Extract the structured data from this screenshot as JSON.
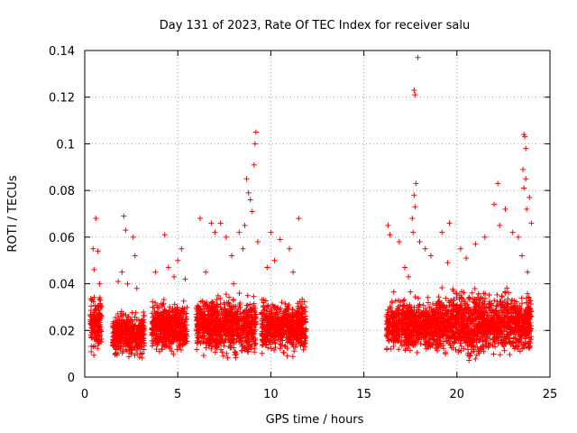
{
  "chart_data": {
    "type": "scatter",
    "title": "Day 131 of 2023, Rate Of TEC Index for receiver salu",
    "xlabel": "GPS time / hours",
    "ylabel": "ROTI / TECUs",
    "xlim": [
      0,
      25
    ],
    "ylim": [
      0,
      0.14
    ],
    "xticks": [
      0,
      5,
      10,
      15,
      20,
      25
    ],
    "xtick_labels": [
      "0",
      "5",
      "10",
      "15",
      "20",
      "25"
    ],
    "yticks": [
      0,
      0.02,
      0.04,
      0.06,
      0.08,
      0.1,
      0.12,
      0.14
    ],
    "ytick_labels": [
      "0",
      "0.02",
      "0.04",
      "0.06",
      "0.08",
      "0.1",
      "0.12",
      "0.14"
    ],
    "grid": true,
    "marker": "+",
    "color": "#ff0000",
    "clusters": [
      {
        "x_start": 0.3,
        "x_end": 0.9,
        "y_low": 0.007,
        "y_high": 0.038
      },
      {
        "x_start": 1.5,
        "x_end": 3.2,
        "y_low": 0.007,
        "y_high": 0.03
      },
      {
        "x_start": 3.6,
        "x_end": 5.5,
        "y_low": 0.008,
        "y_high": 0.035
      },
      {
        "x_start": 6.0,
        "x_end": 9.2,
        "y_low": 0.006,
        "y_high": 0.038
      },
      {
        "x_start": 9.5,
        "x_end": 11.9,
        "y_low": 0.008,
        "y_high": 0.035
      },
      {
        "x_start": 16.2,
        "x_end": 18.9,
        "y_low": 0.008,
        "y_high": 0.037
      },
      {
        "x_start": 18.9,
        "x_end": 24.0,
        "y_low": 0.006,
        "y_high": 0.04
      }
    ],
    "points": [
      [
        0.6,
        0.068
      ],
      [
        0.45,
        0.055
      ],
      [
        0.7,
        0.054
      ],
      [
        0.5,
        0.046
      ],
      [
        0.8,
        0.04
      ],
      [
        2.1,
        0.069
      ],
      [
        2.2,
        0.063
      ],
      [
        2.6,
        0.06
      ],
      [
        2.0,
        0.045
      ],
      [
        2.7,
        0.052
      ],
      [
        2.3,
        0.04
      ],
      [
        1.8,
        0.041
      ],
      [
        2.8,
        0.038
      ],
      [
        4.3,
        0.061
      ],
      [
        5.0,
        0.05
      ],
      [
        4.5,
        0.047
      ],
      [
        5.2,
        0.055
      ],
      [
        3.8,
        0.045
      ],
      [
        4.8,
        0.043
      ],
      [
        5.4,
        0.042
      ],
      [
        6.2,
        0.068
      ],
      [
        6.8,
        0.066
      ],
      [
        7.0,
        0.062
      ],
      [
        7.3,
        0.066
      ],
      [
        7.6,
        0.06
      ],
      [
        8.3,
        0.062
      ],
      [
        8.5,
        0.055
      ],
      [
        8.8,
        0.079
      ],
      [
        8.7,
        0.085
      ],
      [
        8.9,
        0.076
      ],
      [
        9.0,
        0.071
      ],
      [
        9.2,
        0.105
      ],
      [
        9.15,
        0.1
      ],
      [
        9.1,
        0.091
      ],
      [
        8.6,
        0.065
      ],
      [
        9.3,
        0.058
      ],
      [
        7.9,
        0.052
      ],
      [
        6.5,
        0.045
      ],
      [
        8.0,
        0.04
      ],
      [
        10.0,
        0.062
      ],
      [
        10.5,
        0.059
      ],
      [
        11.5,
        0.068
      ],
      [
        11.0,
        0.055
      ],
      [
        10.2,
        0.05
      ],
      [
        9.8,
        0.047
      ],
      [
        11.2,
        0.045
      ],
      [
        16.3,
        0.065
      ],
      [
        16.4,
        0.061
      ],
      [
        16.9,
        0.058
      ],
      [
        17.2,
        0.047
      ],
      [
        17.4,
        0.043
      ],
      [
        17.6,
        0.068
      ],
      [
        17.7,
        0.078
      ],
      [
        17.8,
        0.083
      ],
      [
        17.75,
        0.073
      ],
      [
        17.9,
        0.137
      ],
      [
        17.7,
        0.123
      ],
      [
        17.75,
        0.121
      ],
      [
        17.65,
        0.062
      ],
      [
        18.0,
        0.058
      ],
      [
        18.3,
        0.055
      ],
      [
        18.6,
        0.052
      ],
      [
        19.2,
        0.062
      ],
      [
        19.6,
        0.066
      ],
      [
        19.5,
        0.049
      ],
      [
        20.2,
        0.055
      ],
      [
        20.5,
        0.051
      ],
      [
        21.0,
        0.057
      ],
      [
        21.5,
        0.06
      ],
      [
        22.2,
        0.083
      ],
      [
        22.3,
        0.065
      ],
      [
        22.0,
        0.074
      ],
      [
        22.6,
        0.072
      ],
      [
        23.0,
        0.062
      ],
      [
        23.3,
        0.06
      ],
      [
        23.6,
        0.104
      ],
      [
        23.65,
        0.103
      ],
      [
        23.7,
        0.098
      ],
      [
        23.55,
        0.089
      ],
      [
        23.7,
        0.085
      ],
      [
        23.6,
        0.081
      ],
      [
        23.75,
        0.072
      ],
      [
        23.9,
        0.077
      ],
      [
        24.0,
        0.066
      ],
      [
        23.5,
        0.052
      ],
      [
        23.8,
        0.045
      ]
    ]
  }
}
